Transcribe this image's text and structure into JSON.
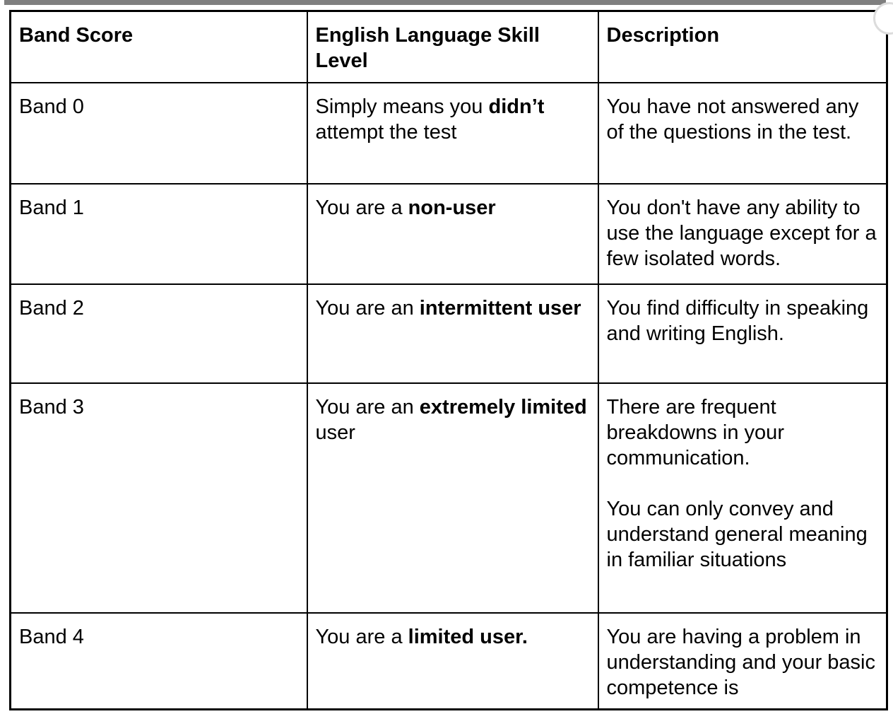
{
  "page": {
    "background": "#ffffff",
    "top_bar_color": "#7f7f7f",
    "corner_arc_color": "#dcdcdc",
    "border_color": "#000000",
    "text_color": "#000000"
  },
  "table": {
    "headers": [
      "Band Score",
      "English Language Skill Level",
      "Description"
    ],
    "rows": [
      {
        "band": "Band 0",
        "skill": [
          [
            {
              "text": "Simply means you ",
              "bold": false
            },
            {
              "text": "didn’t",
              "bold": true
            },
            {
              "text": " attempt the test",
              "bold": false
            }
          ]
        ],
        "description": [
          [
            {
              "text": "You have not answered any of the questions in the test.",
              "bold": false
            }
          ]
        ]
      },
      {
        "band": "Band 1",
        "skill": [
          [
            {
              "text": "You are a ",
              "bold": false
            },
            {
              "text": "non-user",
              "bold": true
            }
          ]
        ],
        "description": [
          [
            {
              "text": "You don't have any ability to use the language except for a few isolated words.",
              "bold": false
            }
          ]
        ]
      },
      {
        "band": "Band 2",
        "skill": [
          [
            {
              "text": "You are an ",
              "bold": false
            },
            {
              "text": "intermittent user",
              "bold": true
            }
          ]
        ],
        "description": [
          [
            {
              "text": "You find difficulty in speaking and writing English.",
              "bold": false
            }
          ]
        ]
      },
      {
        "band": "Band 3",
        "skill": [
          [
            {
              "text": "You are an ",
              "bold": false
            },
            {
              "text": "extremely limited",
              "bold": true
            },
            {
              "text": " user",
              "bold": false
            }
          ]
        ],
        "description": [
          [
            {
              "text": "There are frequent breakdowns in your communication.",
              "bold": false
            }
          ],
          [
            {
              "text": "You can only convey and understand general meaning in familiar situations",
              "bold": false
            }
          ]
        ]
      },
      {
        "band": "Band 4",
        "skill": [
          [
            {
              "text": "You are a ",
              "bold": false
            },
            {
              "text": "limited user.",
              "bold": true
            }
          ]
        ],
        "description": [
          [
            {
              "text": "You are having a problem in understanding and your basic competence is",
              "bold": false
            }
          ]
        ]
      }
    ]
  }
}
